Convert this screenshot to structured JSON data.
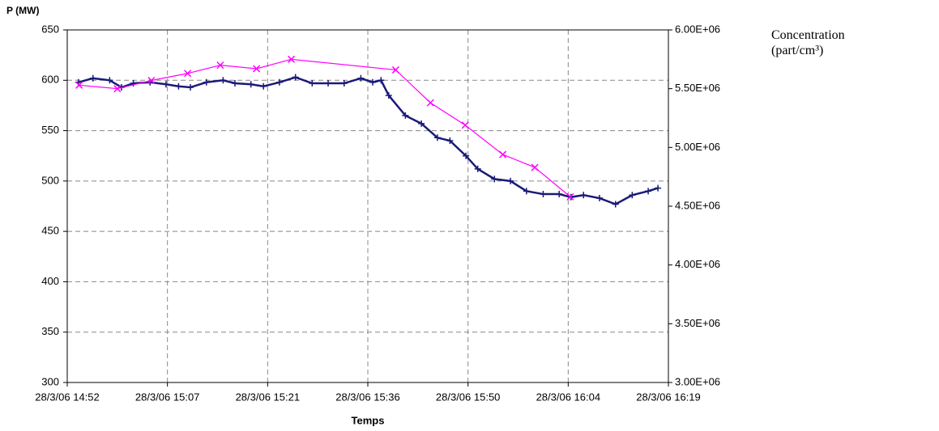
{
  "chart_data": {
    "type": "line",
    "y_label": "P (MW)",
    "x_label": "Temps",
    "xlim": [
      892.5,
      978.9
    ],
    "xticks": [
      {
        "value": 892.5,
        "label": "28/3/06 14:52"
      },
      {
        "value": 906.9,
        "label": "28/3/06 15:07"
      },
      {
        "value": 921.3,
        "label": "28/3/06 15:21"
      },
      {
        "value": 935.7,
        "label": "28/3/06 15:36"
      },
      {
        "value": 950.1,
        "label": "28/3/06 15:50"
      },
      {
        "value": 964.5,
        "label": "28/3/06 16:04"
      },
      {
        "value": 978.9,
        "label": "28/3/06 16:19"
      }
    ],
    "ylim": [
      300,
      650
    ],
    "yticks": [
      300,
      350,
      400,
      450,
      500,
      550,
      600,
      650
    ],
    "y2lim": [
      3000000,
      6000000
    ],
    "y2ticks": [
      {
        "value": 3000000,
        "label": "3.00E+06"
      },
      {
        "value": 3500000,
        "label": "3.50E+06"
      },
      {
        "value": 4000000,
        "label": "4.00E+06"
      },
      {
        "value": 4500000,
        "label": "4.50E+06"
      },
      {
        "value": 5000000,
        "label": "5.00E+06"
      },
      {
        "value": 5500000,
        "label": "5.50E+06"
      },
      {
        "value": 6000000,
        "label": "6.00E+06"
      }
    ],
    "grid": true,
    "series": [
      {
        "color": "#1a1a7a",
        "marker": "plus",
        "x": [
          894.1,
          896.2,
          898.6,
          900.3,
          902.0,
          904.4,
          906.7,
          908.5,
          910.2,
          912.5,
          914.9,
          916.6,
          918.9,
          920.7,
          923.0,
          925.3,
          927.7,
          930.0,
          932.3,
          934.7,
          936.4,
          937.6,
          938.7,
          941.1,
          943.4,
          945.7,
          947.5,
          949.8,
          951.5,
          953.9,
          956.2,
          958.5,
          960.9,
          963.2,
          964.9,
          966.7,
          969.0,
          971.3,
          973.7,
          976.0,
          977.4
        ],
        "values": [
          598,
          602,
          600,
          593,
          597,
          598,
          596,
          594,
          593,
          598,
          600,
          597,
          596,
          594,
          598,
          603,
          597,
          597,
          597,
          602,
          598,
          600,
          585,
          565,
          557,
          543,
          540,
          525,
          512,
          502,
          500,
          490,
          487,
          487,
          484,
          486,
          483,
          477,
          486,
          490,
          493
        ]
      },
      {
        "name": "Concentration (part/cm³)",
        "color": "#ff00ff",
        "marker": "cross",
        "axis": "y2",
        "x": [
          894.2,
          899.7,
          904.6,
          909.8,
          914.5,
          919.7,
          924.7,
          939.7,
          944.7,
          949.7,
          955.1,
          959.7,
          964.8
        ],
        "values": [
          5530000,
          5500000,
          5570000,
          5630000,
          5700000,
          5670000,
          5750000,
          5660000,
          5380000,
          5190000,
          4940000,
          4830000,
          4580000
        ]
      }
    ]
  }
}
